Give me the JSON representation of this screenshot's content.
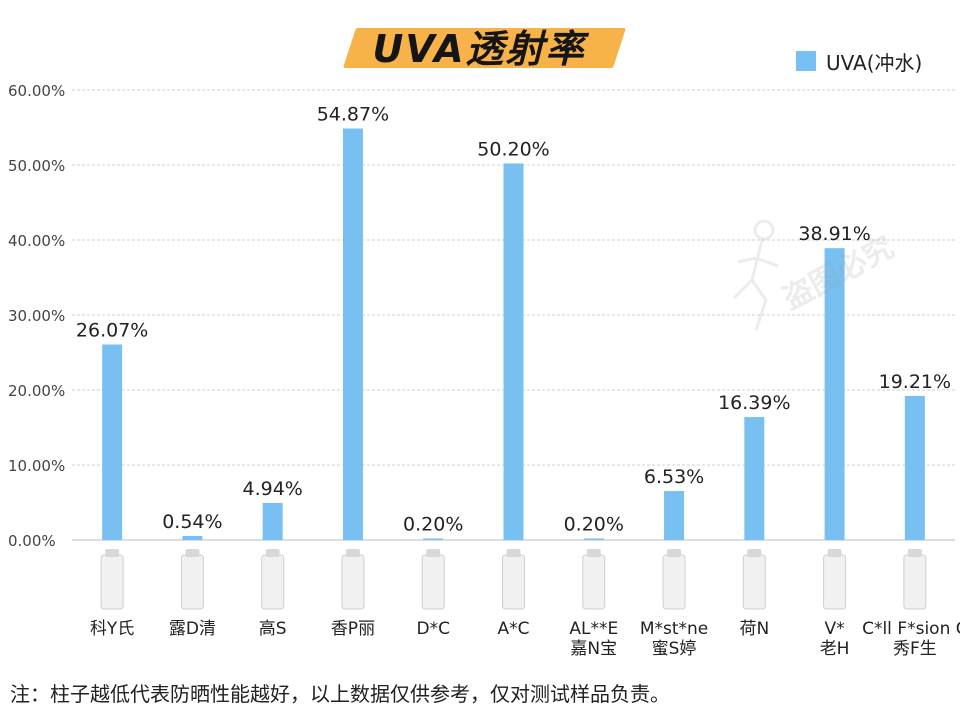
{
  "title": "UVA透射率",
  "legend": {
    "label": "UVA(冲水)",
    "color": "#79c0f2"
  },
  "note": "注：柱子越低代表防晒性能越好，以上数据仅供参考，仅对测试样品负责。",
  "watermark_text": "盗图必究",
  "chart_data": {
    "type": "bar",
    "categories": [
      "科Y氏",
      "露D清",
      "高S",
      "香P丽",
      "D*C",
      "A*C",
      "AL**E 嘉N宝",
      "M*st*ne 蜜S婷",
      "荷N",
      "V* 老H",
      "C*ll F*sion C 秀F生"
    ],
    "category_lines": [
      [
        "科Y氏"
      ],
      [
        "露D清"
      ],
      [
        "高S"
      ],
      [
        "香P丽"
      ],
      [
        "D*C"
      ],
      [
        "A*C"
      ],
      [
        "AL**E",
        "嘉N宝"
      ],
      [
        "M*st*ne",
        "蜜S婷"
      ],
      [
        "荷N"
      ],
      [
        "V*",
        "老H"
      ],
      [
        "C*ll F*sion C",
        "秀F生"
      ]
    ],
    "series": [
      {
        "name": "UVA(冲水)",
        "values": [
          26.07,
          0.54,
          4.94,
          54.87,
          0.2,
          50.2,
          0.2,
          6.53,
          16.39,
          38.91,
          19.21
        ]
      }
    ],
    "data_labels": [
      "26.07%",
      "0.54%",
      "4.94%",
      "54.87%",
      "0.20%",
      "50.20%",
      "0.20%",
      "6.53%",
      "16.39%",
      "38.91%",
      "19.21%"
    ],
    "yticks": [
      "0.00%",
      "10.00%",
      "20.00%",
      "30.00%",
      "40.00%",
      "50.00%",
      "60.00%"
    ],
    "ylim": [
      0,
      60
    ],
    "grid": true,
    "legend_position": "top-right",
    "bar_color": "#79c0f2"
  }
}
